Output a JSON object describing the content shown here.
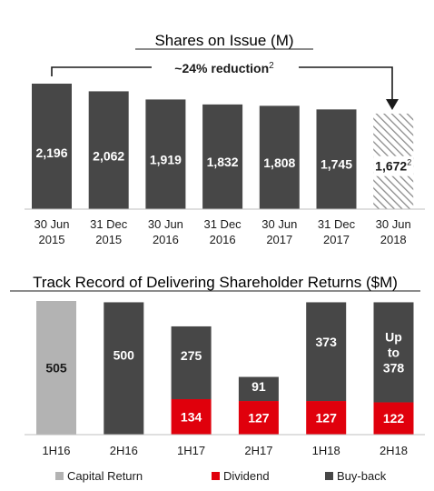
{
  "chart_data": [
    {
      "type": "bar",
      "title": "Shares on Issue (M)",
      "categories": [
        [
          "30 Jun",
          "2015"
        ],
        [
          "31 Dec",
          "2015"
        ],
        [
          "30 Jun",
          "2016"
        ],
        [
          "31 Dec",
          "2016"
        ],
        [
          "30 Jun",
          "2017"
        ],
        [
          "31 Dec",
          "2017"
        ],
        [
          "30 Jun",
          "2018"
        ]
      ],
      "values": [
        2196,
        2062,
        1919,
        1832,
        1808,
        1745,
        1672
      ],
      "value_labels": [
        "2,196",
        "2,062",
        "1,919",
        "1,832",
        "1,808",
        "1,745",
        "1,672"
      ],
      "value_label_superscripts": [
        "",
        "",
        "",
        "",
        "",
        "",
        "2"
      ],
      "projected": [
        false,
        false,
        false,
        false,
        false,
        false,
        true
      ],
      "annotation": {
        "text": "~24% reduction",
        "superscript": "2"
      },
      "colors": {
        "actual": "#474747",
        "projected_hatch": "#8c8c8c"
      }
    },
    {
      "type": "bar",
      "stacked": true,
      "title": "Track Record of Delivering Shareholder Returns ($M)",
      "categories": [
        "1H16",
        "2H16",
        "1H17",
        "2H17",
        "1H18",
        "2H18"
      ],
      "series": [
        {
          "name": "Capital Return",
          "values": [
            505,
            0,
            0,
            0,
            0,
            0
          ],
          "labels": [
            "505",
            "",
            "",
            "",
            "",
            ""
          ],
          "color": "#b3b3b3"
        },
        {
          "name": "Dividend",
          "values": [
            0,
            0,
            134,
            127,
            127,
            122
          ],
          "labels": [
            "",
            "",
            "134",
            "127",
            "127",
            "122"
          ],
          "color": "#e0000c"
        },
        {
          "name": "Buy-back",
          "values": [
            0,
            500,
            275,
            91,
            373,
            378
          ],
          "labels": [
            "",
            "500",
            "275",
            "91",
            "373",
            "Up to 378"
          ],
          "color": "#474747"
        }
      ],
      "legend_position": "bottom"
    }
  ]
}
